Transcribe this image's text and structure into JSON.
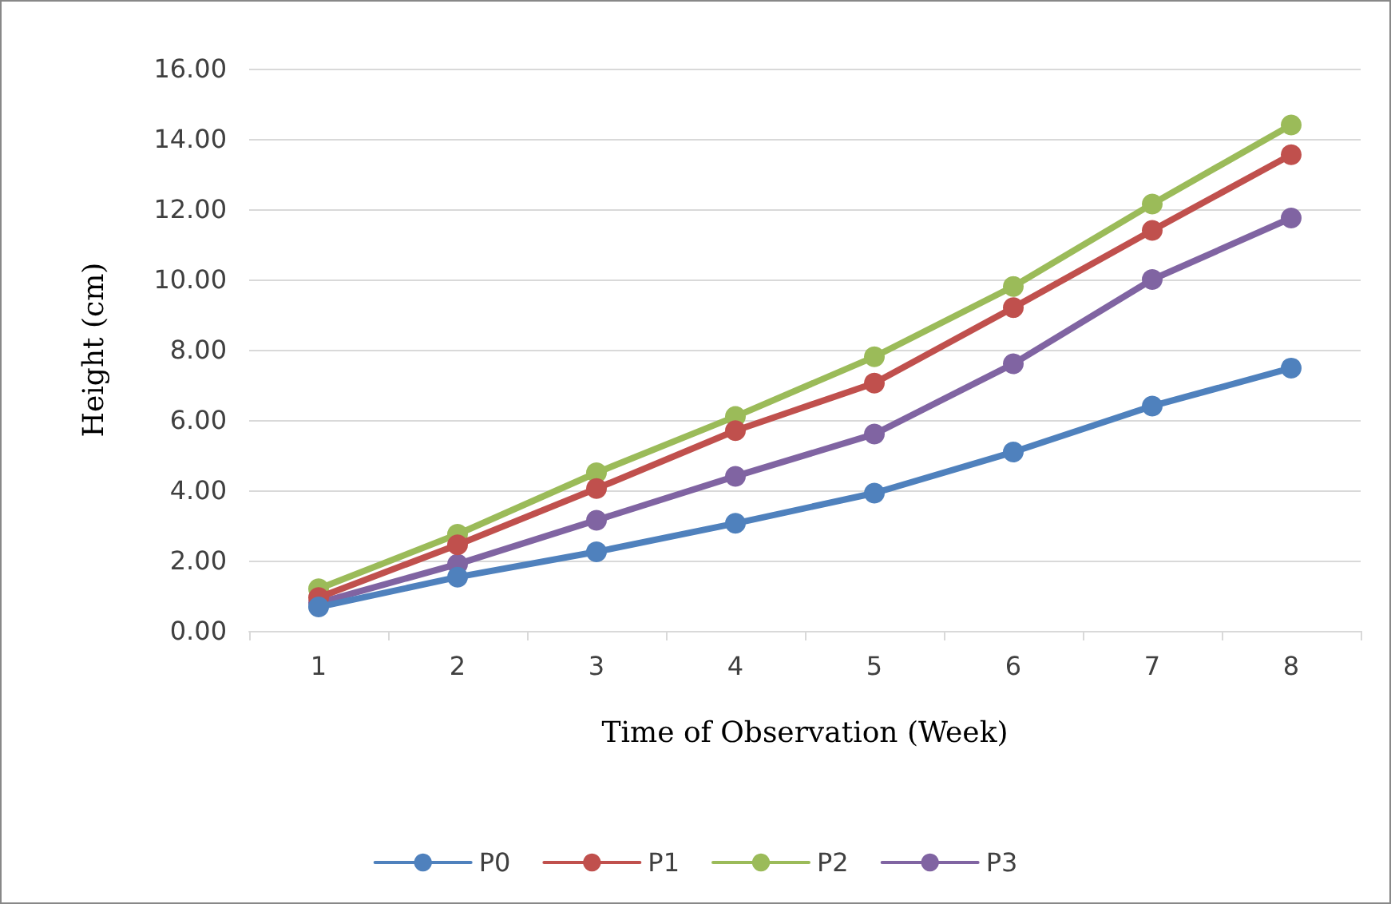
{
  "chart_data": {
    "type": "line",
    "xlabel": "Time of Observation (Week)",
    "ylabel": "Height (cm)",
    "categories": [
      "1",
      "2",
      "3",
      "4",
      "5",
      "6",
      "7",
      "8"
    ],
    "series": [
      {
        "name": "P0",
        "color": "#4f81bd",
        "values": [
          0.68,
          1.53,
          2.25,
          3.06,
          3.92,
          5.09,
          6.4,
          7.48
        ]
      },
      {
        "name": "P1",
        "color": "#c0504d",
        "values": [
          0.95,
          2.45,
          4.05,
          5.7,
          7.05,
          9.2,
          11.4,
          13.55
        ]
      },
      {
        "name": "P2",
        "color": "#9bbb59",
        "values": [
          1.2,
          2.75,
          4.5,
          6.1,
          7.8,
          9.8,
          12.15,
          14.4
        ]
      },
      {
        "name": "P3",
        "color": "#8064a2",
        "values": [
          0.8,
          1.9,
          3.15,
          4.4,
          5.6,
          7.6,
          10.0,
          11.75
        ]
      }
    ],
    "ylim": [
      0,
      16
    ],
    "yticks": [
      {
        "value": 0,
        "label": "0.00"
      },
      {
        "value": 2,
        "label": "2.00"
      },
      {
        "value": 4,
        "label": "4.00"
      },
      {
        "value": 6,
        "label": "6.00"
      },
      {
        "value": 8,
        "label": "8.00"
      },
      {
        "value": 10,
        "label": "10.00"
      },
      {
        "value": 12,
        "label": "12.00"
      },
      {
        "value": 14,
        "label": "14.00"
      },
      {
        "value": 16,
        "label": "16.00"
      }
    ],
    "grid": "y",
    "legend": "bottom",
    "marker": "circle",
    "line_style": "solid"
  }
}
